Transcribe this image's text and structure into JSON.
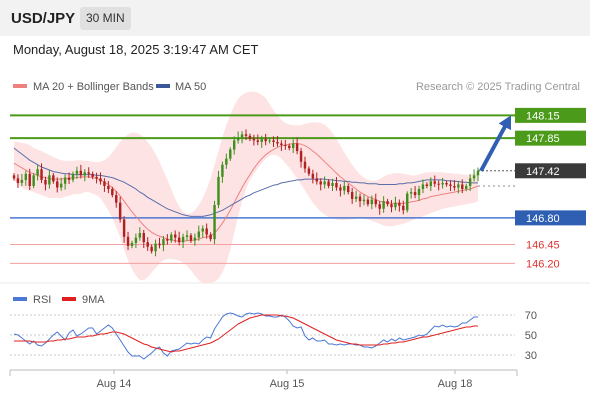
{
  "header": {
    "symbol": "USD/JPY",
    "timeframe": "30 MIN",
    "datetime": "Monday, August 18, 2025 3:19:47 AM CET"
  },
  "legend": {
    "ma20_label": "MA 20 + Bollinger Bands",
    "ma50_label": "MA 50",
    "credit": "Research © 2025 Trading Central",
    "ma20_color": "#f08080",
    "ma50_color": "#3b5998",
    "rsi_label": "RSI",
    "rsi_color": "#4a78d4",
    "ma9_label": "9MA",
    "ma9_color": "#e02020"
  },
  "chart_data": [
    {
      "type": "candlestick",
      "title": "",
      "x_labels": [
        "Aug 14",
        "Aug 15",
        "Aug 18"
      ],
      "ylim": [
        145.85,
        148.55
      ],
      "last_price": 147.42,
      "price_levels": [
        {
          "value": 148.15,
          "label": "148.15",
          "kind": "resistance"
        },
        {
          "value": 147.85,
          "label": "147.85",
          "kind": "resistance"
        },
        {
          "value": 147.42,
          "label": "147.42",
          "kind": "last"
        },
        {
          "value": 146.8,
          "label": "146.80",
          "kind": "support"
        },
        {
          "value": 146.45,
          "label": "146.45",
          "kind": "minor"
        },
        {
          "value": 146.2,
          "label": "146.20",
          "kind": "minor"
        }
      ],
      "projection": {
        "from": 147.42,
        "to": 148.15
      },
      "close": [
        147.32,
        147.26,
        147.3,
        147.38,
        147.22,
        147.36,
        147.44,
        147.3,
        147.24,
        147.36,
        147.28,
        147.2,
        147.25,
        147.33,
        147.3,
        147.38,
        147.42,
        147.36,
        147.4,
        147.38,
        147.34,
        147.32,
        147.28,
        147.22,
        147.18,
        147.1,
        147.0,
        146.78,
        146.55,
        146.43,
        146.47,
        146.54,
        146.6,
        146.48,
        146.42,
        146.36,
        146.46,
        146.44,
        146.52,
        146.5,
        146.58,
        146.54,
        146.48,
        146.55,
        146.57,
        146.5,
        146.54,
        146.62,
        146.66,
        146.58,
        146.52,
        146.97,
        147.34,
        147.5,
        147.58,
        147.7,
        147.82,
        147.86,
        147.9,
        147.88,
        147.84,
        147.82,
        147.8,
        147.84,
        147.81,
        147.82,
        147.8,
        147.78,
        147.76,
        147.75,
        147.72,
        147.78,
        147.68,
        147.54,
        147.45,
        147.38,
        147.32,
        147.28,
        147.24,
        147.28,
        147.22,
        147.26,
        147.2,
        147.16,
        147.22,
        147.14,
        147.05,
        147.08,
        147.02,
        147.04,
        146.98,
        147.04,
        146.98,
        146.92,
        147.02,
        146.98,
        146.94,
        147.0,
        146.96,
        146.9,
        147.12,
        147.14,
        147.1,
        147.18,
        147.24,
        147.22,
        147.28,
        147.25,
        147.24,
        147.26,
        147.24,
        147.22,
        147.2,
        147.24,
        147.18,
        147.22,
        147.32,
        147.36,
        147.42
      ],
      "series": [
        {
          "name": "MA 20",
          "values": [
            147.52,
            147.49,
            147.46,
            147.43,
            147.4,
            147.38,
            147.36,
            147.34,
            147.33,
            147.32,
            147.31,
            147.31,
            147.31,
            147.32,
            147.32,
            147.33,
            147.33,
            147.34,
            147.34,
            147.34,
            147.33,
            147.32,
            147.3,
            147.27,
            147.24,
            147.2,
            147.15,
            147.09,
            147.02,
            146.95,
            146.88,
            146.82,
            146.76,
            146.7,
            146.65,
            146.61,
            146.58,
            146.56,
            146.54,
            146.52,
            146.51,
            146.5,
            146.49,
            146.49,
            146.5,
            146.5,
            146.51,
            146.52,
            146.54,
            146.55,
            146.56,
            146.6,
            146.66,
            146.73,
            146.81,
            146.9,
            147.0,
            147.1,
            147.2,
            147.29,
            147.37,
            147.45,
            147.52,
            147.58,
            147.63,
            147.67,
            147.7,
            147.73,
            147.75,
            147.76,
            147.77,
            147.78,
            147.78,
            147.77,
            147.75,
            147.72,
            147.68,
            147.64,
            147.59,
            147.54,
            147.49,
            147.44,
            147.39,
            147.34,
            147.3,
            147.26,
            147.22,
            147.18,
            147.14,
            147.11,
            147.08,
            147.06,
            147.04,
            147.02,
            147.01,
            147.0,
            146.99,
            146.99,
            146.99,
            146.99,
            147.0,
            147.01,
            147.02,
            147.03,
            147.05,
            147.06,
            147.08,
            147.09,
            147.1,
            147.11,
            147.12,
            147.13,
            147.14,
            147.15,
            147.16,
            147.17,
            147.18,
            147.2,
            147.22
          ]
        },
        {
          "name": "MA 50",
          "values": [
            147.72,
            147.68,
            147.64,
            147.6,
            147.56,
            147.53,
            147.5,
            147.47,
            147.45,
            147.43,
            147.41,
            147.4,
            147.39,
            147.38,
            147.38,
            147.37,
            147.37,
            147.37,
            147.37,
            147.37,
            147.37,
            147.36,
            147.36,
            147.35,
            147.34,
            147.33,
            147.31,
            147.29,
            147.27,
            147.24,
            147.21,
            147.18,
            147.14,
            147.11,
            147.07,
            147.04,
            147.01,
            146.98,
            146.95,
            146.92,
            146.9,
            146.88,
            146.86,
            146.84,
            146.83,
            146.82,
            146.82,
            146.82,
            146.82,
            146.83,
            146.84,
            146.86,
            146.88,
            146.9,
            146.93,
            146.96,
            146.99,
            147.02,
            147.05,
            147.08,
            147.1,
            147.13,
            147.15,
            147.17,
            147.19,
            147.21,
            147.23,
            147.24,
            147.26,
            147.27,
            147.28,
            147.29,
            147.3,
            147.3,
            147.31,
            147.31,
            147.31,
            147.31,
            147.31,
            147.31,
            147.3,
            147.3,
            147.29,
            147.29,
            147.28,
            147.28,
            147.27,
            147.27,
            147.26,
            147.26,
            147.25,
            147.25,
            147.25,
            147.24,
            147.24,
            147.24,
            147.24,
            147.24,
            147.25,
            147.25,
            147.26,
            147.26,
            147.27,
            147.28,
            147.29,
            147.3,
            147.3,
            147.3,
            147.3,
            147.3,
            147.29,
            147.29,
            147.28,
            147.28,
            147.27,
            147.27,
            147.26,
            147.26,
            147.26
          ]
        },
        {
          "name": "BB Upper",
          "values": [
            147.8,
            147.8,
            147.79,
            147.78,
            147.76,
            147.72,
            147.7,
            147.68,
            147.65,
            147.63,
            147.6,
            147.58,
            147.56,
            147.55,
            147.55,
            147.55,
            147.56,
            147.56,
            147.55,
            147.55,
            147.54,
            147.53,
            147.54,
            147.56,
            147.6,
            147.66,
            147.73,
            147.8,
            147.86,
            147.9,
            147.92,
            147.92,
            147.9,
            147.86,
            147.8,
            147.73,
            147.64,
            147.54,
            147.42,
            147.3,
            147.18,
            147.05,
            146.95,
            146.88,
            146.85,
            146.86,
            146.9,
            146.97,
            147.06,
            147.18,
            147.32,
            147.5,
            147.68,
            147.86,
            148.02,
            148.16,
            148.28,
            148.37,
            148.42,
            148.45,
            148.46,
            148.46,
            148.45,
            148.42,
            148.38,
            148.3,
            148.22,
            148.15,
            148.09,
            148.05,
            148.03,
            148.02,
            148.02,
            148.02,
            148.04,
            148.05,
            148.06,
            148.06,
            148.05,
            148.03,
            147.98,
            147.92,
            147.84,
            147.75,
            147.66,
            147.58,
            147.5,
            147.43,
            147.37,
            147.33,
            147.3,
            147.29,
            147.29,
            147.31,
            147.34,
            147.37,
            147.38,
            147.39,
            147.39,
            147.38,
            147.37,
            147.36,
            147.36,
            147.37,
            147.39,
            147.4,
            147.4,
            147.4,
            147.4,
            147.4,
            147.39,
            147.39,
            147.38,
            147.38,
            147.37,
            147.37,
            147.37,
            147.38,
            147.4
          ]
        },
        {
          "name": "BB Lower",
          "values": [
            147.3,
            147.24,
            147.2,
            147.17,
            147.16,
            147.14,
            147.12,
            147.1,
            147.08,
            147.06,
            147.06,
            147.06,
            147.06,
            147.08,
            147.09,
            147.11,
            147.11,
            147.12,
            147.14,
            147.14,
            147.12,
            147.1,
            147.06,
            146.98,
            146.9,
            146.8,
            146.68,
            146.54,
            146.38,
            146.24,
            146.12,
            146.04,
            145.98,
            145.98,
            146.02,
            146.08,
            146.14,
            146.2,
            146.24,
            146.26,
            146.26,
            146.25,
            146.24,
            146.21,
            146.17,
            146.11,
            146.04,
            145.98,
            145.94,
            145.93,
            145.94,
            145.96,
            146.0,
            146.08,
            146.2,
            146.38,
            146.6,
            146.82,
            147.02,
            147.18,
            147.3,
            147.38,
            147.45,
            147.52,
            147.58,
            147.62,
            147.63,
            147.62,
            147.58,
            147.52,
            147.46,
            147.39,
            147.32,
            147.24,
            147.16,
            147.08,
            147.0,
            146.94,
            146.88,
            146.84,
            146.81,
            146.79,
            146.78,
            146.77,
            146.77,
            146.78,
            146.78,
            146.79,
            146.79,
            146.79,
            146.78,
            146.76,
            146.74,
            146.72,
            146.7,
            146.69,
            146.69,
            146.7,
            146.71,
            146.72,
            146.74,
            146.76,
            146.78,
            146.8,
            146.82,
            146.84,
            146.86,
            146.88,
            146.9,
            146.92,
            146.93,
            146.94,
            146.95,
            146.96,
            146.97,
            146.98,
            146.99,
            147.0,
            147.02
          ]
        }
      ]
    },
    {
      "type": "line",
      "title": "",
      "ylim": [
        15,
        80
      ],
      "y_ticks": [
        70,
        50,
        30
      ],
      "series": [
        {
          "name": "RSI",
          "values": [
            51,
            50,
            47,
            44,
            41,
            44,
            40,
            39,
            42,
            46,
            50,
            53,
            49,
            45,
            52,
            55,
            49,
            51,
            54,
            57,
            57,
            51,
            54,
            57,
            60,
            57,
            51,
            45,
            39,
            33,
            29,
            29,
            29,
            26,
            29,
            32,
            36,
            38,
            32,
            29,
            34,
            35,
            36,
            39,
            42,
            41,
            42,
            41,
            45,
            48,
            47,
            56,
            62,
            68,
            71,
            72,
            71,
            69,
            68,
            71,
            72,
            71,
            72,
            71,
            69,
            69,
            68,
            68,
            70,
            68,
            64,
            59,
            57,
            58,
            49,
            45,
            47,
            44,
            44,
            45,
            41,
            41,
            40,
            41,
            40,
            41,
            41,
            40,
            40,
            38,
            38,
            37,
            39,
            42,
            45,
            43,
            46,
            44,
            47,
            45,
            46,
            47,
            48,
            50,
            49,
            51,
            55,
            59,
            58,
            60,
            58,
            59,
            58,
            59,
            62,
            62,
            65,
            68,
            68
          ]
        },
        {
          "name": "9MA",
          "values": [
            44,
            44,
            44,
            44,
            44,
            43,
            43,
            43,
            43,
            44,
            44,
            45,
            45,
            46,
            46,
            47,
            48,
            48,
            48,
            49,
            49,
            50,
            51,
            51,
            52,
            53,
            53,
            52,
            51,
            49,
            47,
            45,
            43,
            41,
            40,
            38,
            37,
            36,
            35,
            34,
            33,
            34,
            34,
            35,
            36,
            37,
            38,
            39,
            40,
            41,
            42,
            44,
            46,
            49,
            52,
            55,
            58,
            61,
            63,
            65,
            67,
            68,
            69,
            70,
            70,
            70,
            70,
            70,
            69,
            69,
            68,
            67,
            65,
            63,
            61,
            59,
            57,
            55,
            53,
            51,
            49,
            47,
            45,
            44,
            43,
            42,
            41,
            41,
            40,
            40,
            40,
            40,
            40,
            40,
            41,
            41,
            42,
            42,
            43,
            43,
            44,
            45,
            46,
            47,
            48,
            48,
            49,
            50,
            51,
            52,
            53,
            54,
            55,
            56,
            57,
            58,
            58,
            59,
            59
          ]
        }
      ]
    }
  ]
}
